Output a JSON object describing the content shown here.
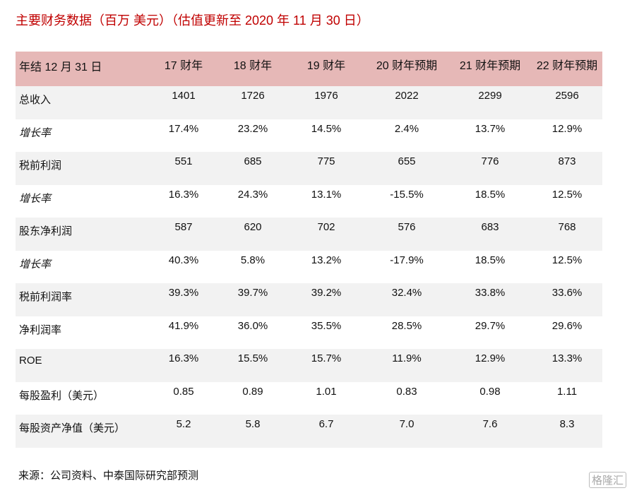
{
  "title": "主要财务数据（百万 美元）（估值更新至 2020 年 11 月 30 日）",
  "header": [
    "年结 12 月 31 日",
    "17 财年",
    "18 财年",
    "19 财年",
    "20 财年预期",
    "21 财年预期",
    "22 财年预期"
  ],
  "rows": [
    {
      "label": "总收入",
      "italic": false,
      "values": [
        "1401",
        "1726",
        "1976",
        "2022",
        "2299",
        "2596"
      ]
    },
    {
      "label": "增长率",
      "italic": true,
      "values": [
        "17.4%",
        "23.2%",
        "14.5%",
        "2.4%",
        "13.7%",
        "12.9%"
      ]
    },
    {
      "label": "税前利润",
      "italic": false,
      "values": [
        "551",
        "685",
        "775",
        "655",
        "776",
        "873"
      ]
    },
    {
      "label": "增长率",
      "italic": true,
      "values": [
        "16.3%",
        "24.3%",
        "13.1%",
        "-15.5%",
        "18.5%",
        "12.5%"
      ]
    },
    {
      "label": "股东净利润",
      "italic": false,
      "values": [
        "587",
        "620",
        "702",
        "576",
        "683",
        "768"
      ]
    },
    {
      "label": "增长率",
      "italic": true,
      "values": [
        "40.3%",
        "5.8%",
        "13.2%",
        "-17.9%",
        "18.5%",
        "12.5%"
      ]
    },
    {
      "label": "税前利润率",
      "italic": false,
      "values": [
        "39.3%",
        "39.7%",
        "39.2%",
        "32.4%",
        "33.8%",
        "33.6%"
      ]
    },
    {
      "label": "净利润率",
      "italic": false,
      "values": [
        "41.9%",
        "36.0%",
        "35.5%",
        "28.5%",
        "29.7%",
        "29.6%"
      ]
    },
    {
      "label": "ROE",
      "italic": false,
      "values": [
        "16.3%",
        "15.5%",
        "15.7%",
        "11.9%",
        "12.9%",
        "13.3%"
      ]
    },
    {
      "label": "每股盈利（美元）",
      "italic": false,
      "values": [
        "0.85",
        "0.89",
        "1.01",
        "0.83",
        "0.98",
        "1.11"
      ]
    },
    {
      "label": "每股资产净值（美元）",
      "italic": false,
      "values": [
        "5.2",
        "5.8",
        "6.7",
        "7.0",
        "7.6",
        "8.3"
      ]
    }
  ],
  "source": "来源：公司资料、中泰国际研究部预测",
  "watermark": "格隆汇",
  "colors": {
    "title": "#c00000",
    "header_bg": "#e6b8b7",
    "stripe": "#f2f2f2"
  }
}
